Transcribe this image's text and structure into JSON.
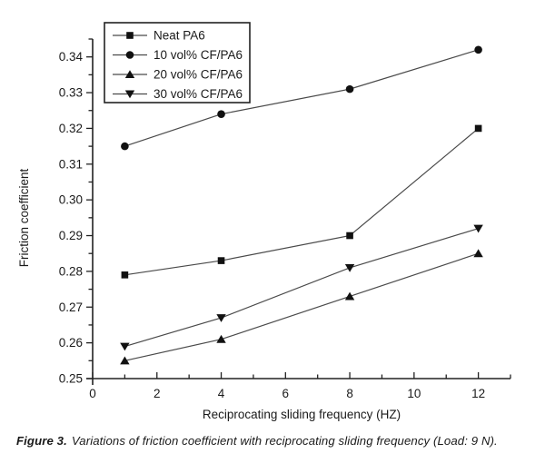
{
  "figure": {
    "caption_label": "Figure 3.",
    "caption_text": "Variations of friction coefficient with reciprocating sliding frequency (Load: 9 N)."
  },
  "chart_data": {
    "type": "line",
    "x": [
      1,
      4,
      8,
      12
    ],
    "series": [
      {
        "name": "Neat PA6",
        "marker": "square",
        "values": [
          0.279,
          0.283,
          0.29,
          0.32
        ]
      },
      {
        "name": "10 vol% CF/PA6",
        "marker": "circle",
        "values": [
          0.315,
          0.324,
          0.331,
          0.342
        ]
      },
      {
        "name": "20 vol% CF/PA6",
        "marker": "triangle-up",
        "values": [
          0.255,
          0.261,
          0.273,
          0.285
        ]
      },
      {
        "name": "30 vol% CF/PA6",
        "marker": "triangle-down",
        "values": [
          0.259,
          0.267,
          0.281,
          0.292
        ]
      }
    ],
    "xlabel": "Reciprocating sliding frequency (HZ)",
    "ylabel": "Friction coefficient",
    "xlim": [
      0,
      13
    ],
    "ylim": [
      0.25,
      0.345
    ],
    "x_tick_labels": [
      "0",
      "2",
      "4",
      "6",
      "8",
      "10",
      "12"
    ],
    "x_minor_step": 1,
    "y_tick_labels": [
      "0.25",
      "0.26",
      "0.27",
      "0.28",
      "0.29",
      "0.30",
      "0.31",
      "0.32",
      "0.33",
      "0.34"
    ],
    "y_minor_step": 0.005,
    "grid": false,
    "legend_position": "top-left",
    "axis_color": "#222222",
    "line_color": "#4a4a4a",
    "marker_color": "#111111"
  }
}
